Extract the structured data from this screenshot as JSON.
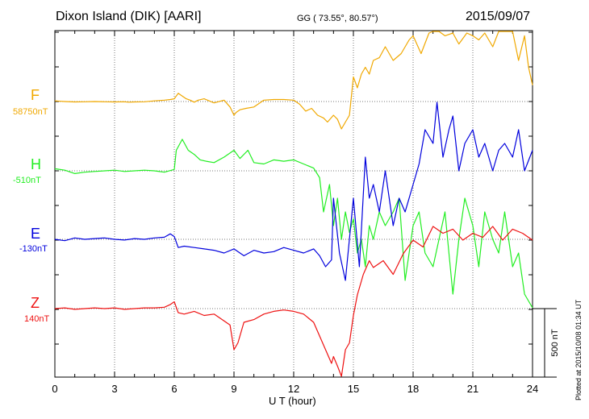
{
  "header": {
    "title": "Dixon Island (DIK)  [AARI]",
    "coords": "GG ( 73.55°,  80.57°)",
    "date": "2015/09/07"
  },
  "footer": {
    "plotted": "Plotted at 2015/10/08 01:34 UT"
  },
  "chart_data": {
    "type": "line",
    "title": "Dixon Island (DIK)  [AARI]",
    "xlabel": "U T (hour)",
    "ylabel": "",
    "xlim": [
      0,
      24
    ],
    "xticks": [
      0,
      3,
      6,
      9,
      12,
      15,
      18,
      21,
      24
    ],
    "grid": true,
    "scale_bar_label": "500 nT",
    "scale_bar_nT": 500,
    "offset_units": "nT relative to channel baseline",
    "series": [
      {
        "name": "F",
        "baseline_label": "58750nT",
        "color": "#f0a800",
        "x": [
          0,
          0.3,
          0.5,
          1,
          1.5,
          2,
          2.5,
          3,
          3.5,
          3.7,
          4,
          4.5,
          5,
          5.5,
          5.8,
          6,
          6.2,
          6.4,
          6.6,
          6.8,
          7,
          7.2,
          7.5,
          8,
          8.5,
          8.8,
          9,
          9.1,
          9.3,
          9.6,
          10,
          10.5,
          11,
          11.5,
          12,
          12.3,
          12.6,
          12.9,
          13.2,
          13.5,
          13.7,
          14,
          14.2,
          14.4,
          14.6,
          14.8,
          15,
          15.2,
          15.4,
          15.6,
          15.8,
          16,
          16.3,
          16.6,
          17,
          17.4,
          17.8,
          18,
          18.4,
          18.8,
          19,
          19.3,
          19.6,
          20,
          20.3,
          20.7,
          21,
          21.3,
          21.6,
          22,
          22.3,
          22.6,
          23,
          23.3,
          23.6,
          23.8,
          24
        ],
        "values": [
          5,
          2,
          0,
          -3,
          -2,
          0,
          -2,
          -3,
          -2,
          -5,
          -3,
          -2,
          5,
          10,
          15,
          20,
          60,
          40,
          20,
          10,
          -5,
          10,
          20,
          -10,
          10,
          -40,
          -100,
          -80,
          -60,
          -50,
          -40,
          10,
          15,
          15,
          10,
          -20,
          -70,
          -50,
          -100,
          -120,
          -150,
          -100,
          -130,
          -200,
          -150,
          -100,
          180,
          100,
          200,
          250,
          200,
          300,
          320,
          400,
          300,
          350,
          450,
          480,
          350,
          500,
          520,
          600,
          480,
          500,
          420,
          500,
          480,
          450,
          500,
          400,
          550,
          600,
          520,
          300,
          480,
          250,
          120
        ]
      },
      {
        "name": "H",
        "baseline_label": "-510nT",
        "color": "#22ee22",
        "x": [
          0,
          0.5,
          1,
          1.5,
          2,
          2.5,
          3,
          3.5,
          4,
          4.5,
          5,
          5.5,
          6,
          6.1,
          6.4,
          6.7,
          7,
          7.3,
          7.6,
          8,
          8.5,
          9,
          9.3,
          9.7,
          10,
          10.5,
          11,
          11.5,
          12,
          12.5,
          13,
          13.3,
          13.5,
          13.8,
          14,
          14.2,
          14.4,
          14.6,
          14.8,
          15,
          15.2,
          15.4,
          15.6,
          15.8,
          16,
          16.3,
          16.6,
          17,
          17.3,
          17.6,
          18,
          18.3,
          18.6,
          19,
          19.3,
          19.6,
          20,
          20.3,
          20.6,
          21,
          21.3,
          21.6,
          22,
          22.3,
          22.6,
          23,
          23.3,
          23.6,
          24
        ],
        "values": [
          15,
          5,
          -20,
          -10,
          -5,
          0,
          5,
          -5,
          0,
          5,
          0,
          -10,
          10,
          150,
          230,
          150,
          120,
          80,
          70,
          60,
          100,
          150,
          90,
          150,
          60,
          50,
          80,
          70,
          80,
          50,
          20,
          -50,
          -300,
          -100,
          -400,
          -200,
          -500,
          -300,
          -450,
          -350,
          -600,
          -500,
          -700,
          -400,
          -500,
          -300,
          -400,
          -300,
          -200,
          -800,
          -400,
          -300,
          -600,
          -700,
          -500,
          -300,
          -900,
          -500,
          -200,
          -400,
          -700,
          -300,
          -500,
          -600,
          -300,
          -700,
          -600,
          -900,
          -1000
        ]
      },
      {
        "name": "E",
        "baseline_label": "-130nT",
        "color": "#0000dd",
        "x": [
          0,
          0.5,
          1,
          1.5,
          2,
          2.5,
          3,
          3.5,
          4,
          4.5,
          5,
          5.5,
          5.8,
          6,
          6.2,
          6.5,
          7,
          7.5,
          8,
          8.5,
          9,
          9.5,
          10,
          10.5,
          11,
          11.5,
          12,
          12.5,
          13,
          13.3,
          13.6,
          13.9,
          14,
          14.3,
          14.6,
          15,
          15.3,
          15.6,
          15.8,
          16,
          16.3,
          16.6,
          17,
          17.3,
          17.6,
          18,
          18.3,
          18.6,
          19,
          19.2,
          19.5,
          19.8,
          20,
          20.3,
          20.6,
          21,
          21.3,
          21.6,
          22,
          22.3,
          22.6,
          23,
          23.3,
          23.6,
          24
        ],
        "values": [
          0,
          -10,
          10,
          0,
          5,
          10,
          0,
          -5,
          5,
          0,
          10,
          15,
          40,
          20,
          -60,
          -50,
          -60,
          -70,
          -80,
          -100,
          -70,
          -120,
          -80,
          -100,
          -90,
          -60,
          -80,
          -100,
          -70,
          -120,
          -200,
          -150,
          300,
          -100,
          -300,
          300,
          -200,
          600,
          300,
          400,
          200,
          500,
          100,
          300,
          200,
          400,
          550,
          800,
          700,
          1000,
          600,
          800,
          900,
          500,
          700,
          800,
          600,
          700,
          500,
          650,
          700,
          600,
          800,
          500,
          650
        ]
      },
      {
        "name": "Z",
        "baseline_label": "140nT",
        "color": "#ee1111",
        "x": [
          0,
          0.5,
          1,
          1.5,
          2,
          2.5,
          3,
          3.5,
          4,
          4.5,
          5,
          5.5,
          5.8,
          6,
          6.2,
          6.5,
          7,
          7.5,
          8,
          8.5,
          8.8,
          9,
          9.2,
          9.5,
          10,
          10.5,
          11,
          11.5,
          12,
          12.5,
          13,
          13.3,
          13.6,
          13.9,
          14,
          14.2,
          14.4,
          14.6,
          14.8,
          15,
          15.2,
          15.5,
          15.8,
          16,
          16.5,
          17,
          17.5,
          18,
          18.5,
          19,
          19.5,
          20,
          20.5,
          21,
          21.5,
          22,
          22.5,
          23,
          23.5,
          24
        ],
        "values": [
          0,
          5,
          -5,
          0,
          5,
          0,
          5,
          -5,
          0,
          5,
          5,
          10,
          30,
          50,
          -30,
          -40,
          -20,
          -50,
          -40,
          -90,
          -120,
          -300,
          -250,
          -100,
          -80,
          -40,
          -20,
          -10,
          -20,
          -40,
          -100,
          -200,
          -300,
          -400,
          -350,
          -420,
          -500,
          -300,
          -250,
          -50,
          100,
          250,
          350,
          300,
          350,
          250,
          400,
          500,
          450,
          600,
          550,
          580,
          500,
          550,
          520,
          600,
          500,
          580,
          550,
          500
        ]
      }
    ]
  }
}
